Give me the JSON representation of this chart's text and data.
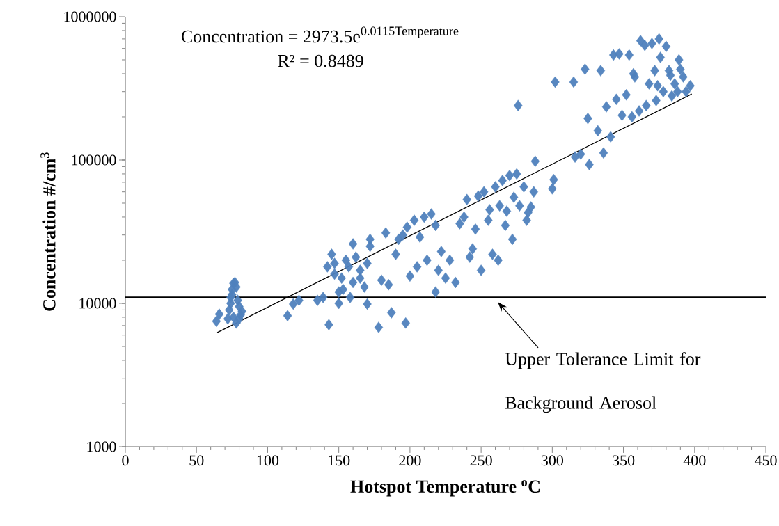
{
  "chart_data": {
    "type": "scatter",
    "xlabel": "Hotspot Temperature $^{o}$C",
    "ylabel": "Concentration #/cm$^{3}$",
    "log": "y",
    "grid": false,
    "xlim": [
      0,
      450
    ],
    "ylim": [
      1000,
      1000000
    ],
    "xticks": [
      0,
      50,
      100,
      150,
      200,
      250,
      300,
      350,
      400,
      450
    ],
    "yticks": [
      1000,
      10000,
      100000,
      1000000
    ],
    "annotations": [
      "\\text{Concentration = 2973.5e}^{\\text{0.0115Temperature}}",
      "R² = 0.8489"
    ],
    "ref_lines": [
      {
        "axis": "y",
        "value": 11000,
        "label": "Upper Tolerance Limit for Background Aerosol",
        "color": "#000000"
      }
    ],
    "series": [
      {
        "marker": "diamond",
        "color": "#4f81bd",
        "x": [
          64,
          66,
          72,
          73,
          74,
          75,
          75,
          76,
          77,
          78,
          76,
          78,
          80,
          82,
          80,
          74,
          79,
          81,
          114,
          118,
          122,
          135,
          139,
          143,
          142,
          145,
          147,
          150,
          150,
          152,
          155,
          157,
          160,
          162,
          165,
          168,
          170,
          172,
          172,
          160,
          158,
          170,
          153,
          147,
          165,
          178,
          180,
          183,
          185,
          187,
          190,
          192,
          195,
          197,
          198,
          200,
          203,
          205,
          207,
          210,
          212,
          215,
          218,
          218,
          220,
          222,
          225,
          228,
          232,
          235,
          238,
          240,
          242,
          244,
          246,
          248,
          250,
          252,
          255,
          256,
          258,
          260,
          262,
          263,
          265,
          267,
          268,
          270,
          272,
          273,
          275,
          276,
          277,
          280,
          282,
          283,
          285,
          287,
          288,
          300,
          301,
          302,
          315,
          316,
          320,
          323,
          325,
          326,
          332,
          334,
          336,
          338,
          341,
          343,
          345,
          347,
          349,
          352,
          354,
          356,
          357,
          358,
          361,
          362,
          365,
          366,
          368,
          370,
          372,
          373,
          375,
          376,
          378,
          380,
          382,
          384,
          386,
          388,
          389,
          390,
          392,
          394,
          397,
          374,
          383
        ],
        "values": [
          7500,
          8400,
          7800,
          9000,
          10000,
          11500,
          12500,
          13800,
          14000,
          13000,
          8000,
          7300,
          9500,
          8800,
          7800,
          11000,
          10500,
          8300,
          8200,
          9900,
          10500,
          10500,
          11000,
          7100,
          18000,
          22000,
          16000,
          12000,
          10000,
          15000,
          20000,
          18000,
          14000,
          21000,
          17000,
          13000,
          19000,
          25000,
          28000,
          26000,
          11000,
          9900,
          12500,
          19000,
          15000,
          6800,
          14500,
          31000,
          13500,
          8600,
          22000,
          28000,
          30000,
          7300,
          34000,
          15500,
          38000,
          18000,
          29000,
          40000,
          20000,
          42000,
          12000,
          35000,
          17000,
          23000,
          15000,
          20000,
          14000,
          36000,
          40000,
          53000,
          21000,
          24000,
          33000,
          56000,
          17000,
          60000,
          38000,
          45000,
          22000,
          65000,
          20000,
          48000,
          72000,
          35000,
          44000,
          78000,
          28000,
          55000,
          80000,
          240000,
          48000,
          65000,
          38000,
          43000,
          47000,
          60000,
          98000,
          63000,
          73000,
          350000,
          350000,
          105000,
          110000,
          430000,
          195000,
          93000,
          160000,
          420000,
          112000,
          235000,
          145000,
          540000,
          265000,
          550000,
          205000,
          285000,
          540000,
          200000,
          400000,
          380000,
          220000,
          680000,
          630000,
          240000,
          340000,
          650000,
          420000,
          260000,
          700000,
          520000,
          300000,
          620000,
          420000,
          280000,
          340000,
          300000,
          500000,
          430000,
          380000,
          300000,
          330000,
          330000,
          390000
        ]
      },
      {
        "type": "line",
        "marker": "none",
        "color": "#000000",
        "x": [
          64,
          398
        ],
        "values": [
          6210,
          289000
        ]
      }
    ]
  }
}
